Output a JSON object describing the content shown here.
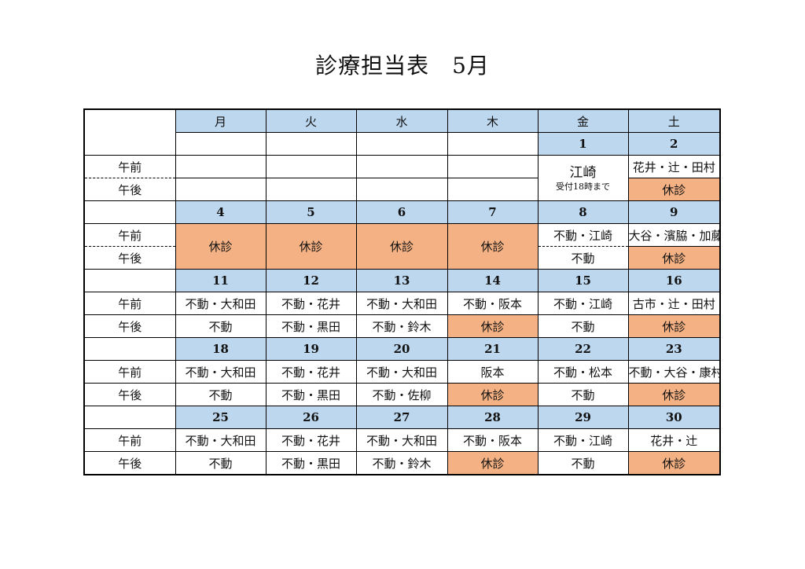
{
  "title": "診療担当表　5月",
  "days": [
    "月",
    "火",
    "水",
    "木",
    "金",
    "土"
  ],
  "am": "午前",
  "pm": "午後",
  "off": "休診",
  "w1": {
    "fri_date": "1",
    "sat_date": "2",
    "fri_main": "江崎",
    "fri_note": "受付18時まで",
    "sat_am": "花井・辻・田村"
  },
  "w2": {
    "dates": [
      "4",
      "5",
      "6",
      "7",
      "8",
      "9"
    ],
    "fri_am": "不動・江崎",
    "fri_pm": "不動",
    "sat_am": "大谷・濱脇・加藤"
  },
  "w3": {
    "dates": [
      "11",
      "12",
      "13",
      "14",
      "15",
      "16"
    ],
    "am": [
      "不動・大和田",
      "不動・花井",
      "不動・大和田",
      "不動・阪本",
      "不動・江崎",
      "古市・辻・田村"
    ],
    "pm": [
      "不動",
      "不動・黒田",
      "不動・鈴木",
      "休診",
      "不動",
      "休診"
    ]
  },
  "w4": {
    "dates": [
      "18",
      "19",
      "20",
      "21",
      "22",
      "23"
    ],
    "am": [
      "不動・大和田",
      "不動・花井",
      "不動・大和田",
      "阪本",
      "不動・松本",
      "不動・大谷・康村"
    ],
    "pm": [
      "不動",
      "不動・黒田",
      "不動・佐柳",
      "休診",
      "不動",
      "休診"
    ]
  },
  "w5": {
    "dates": [
      "25",
      "26",
      "27",
      "28",
      "29",
      "30"
    ],
    "am": [
      "不動・大和田",
      "不動・花井",
      "不動・大和田",
      "不動・阪本",
      "不動・江崎",
      "花井・辻"
    ],
    "pm": [
      "不動",
      "不動・黒田",
      "不動・鈴木",
      "休診",
      "不動",
      "休診"
    ]
  },
  "colors": {
    "header": "#bdd7ee",
    "closed": "#f4b183"
  }
}
